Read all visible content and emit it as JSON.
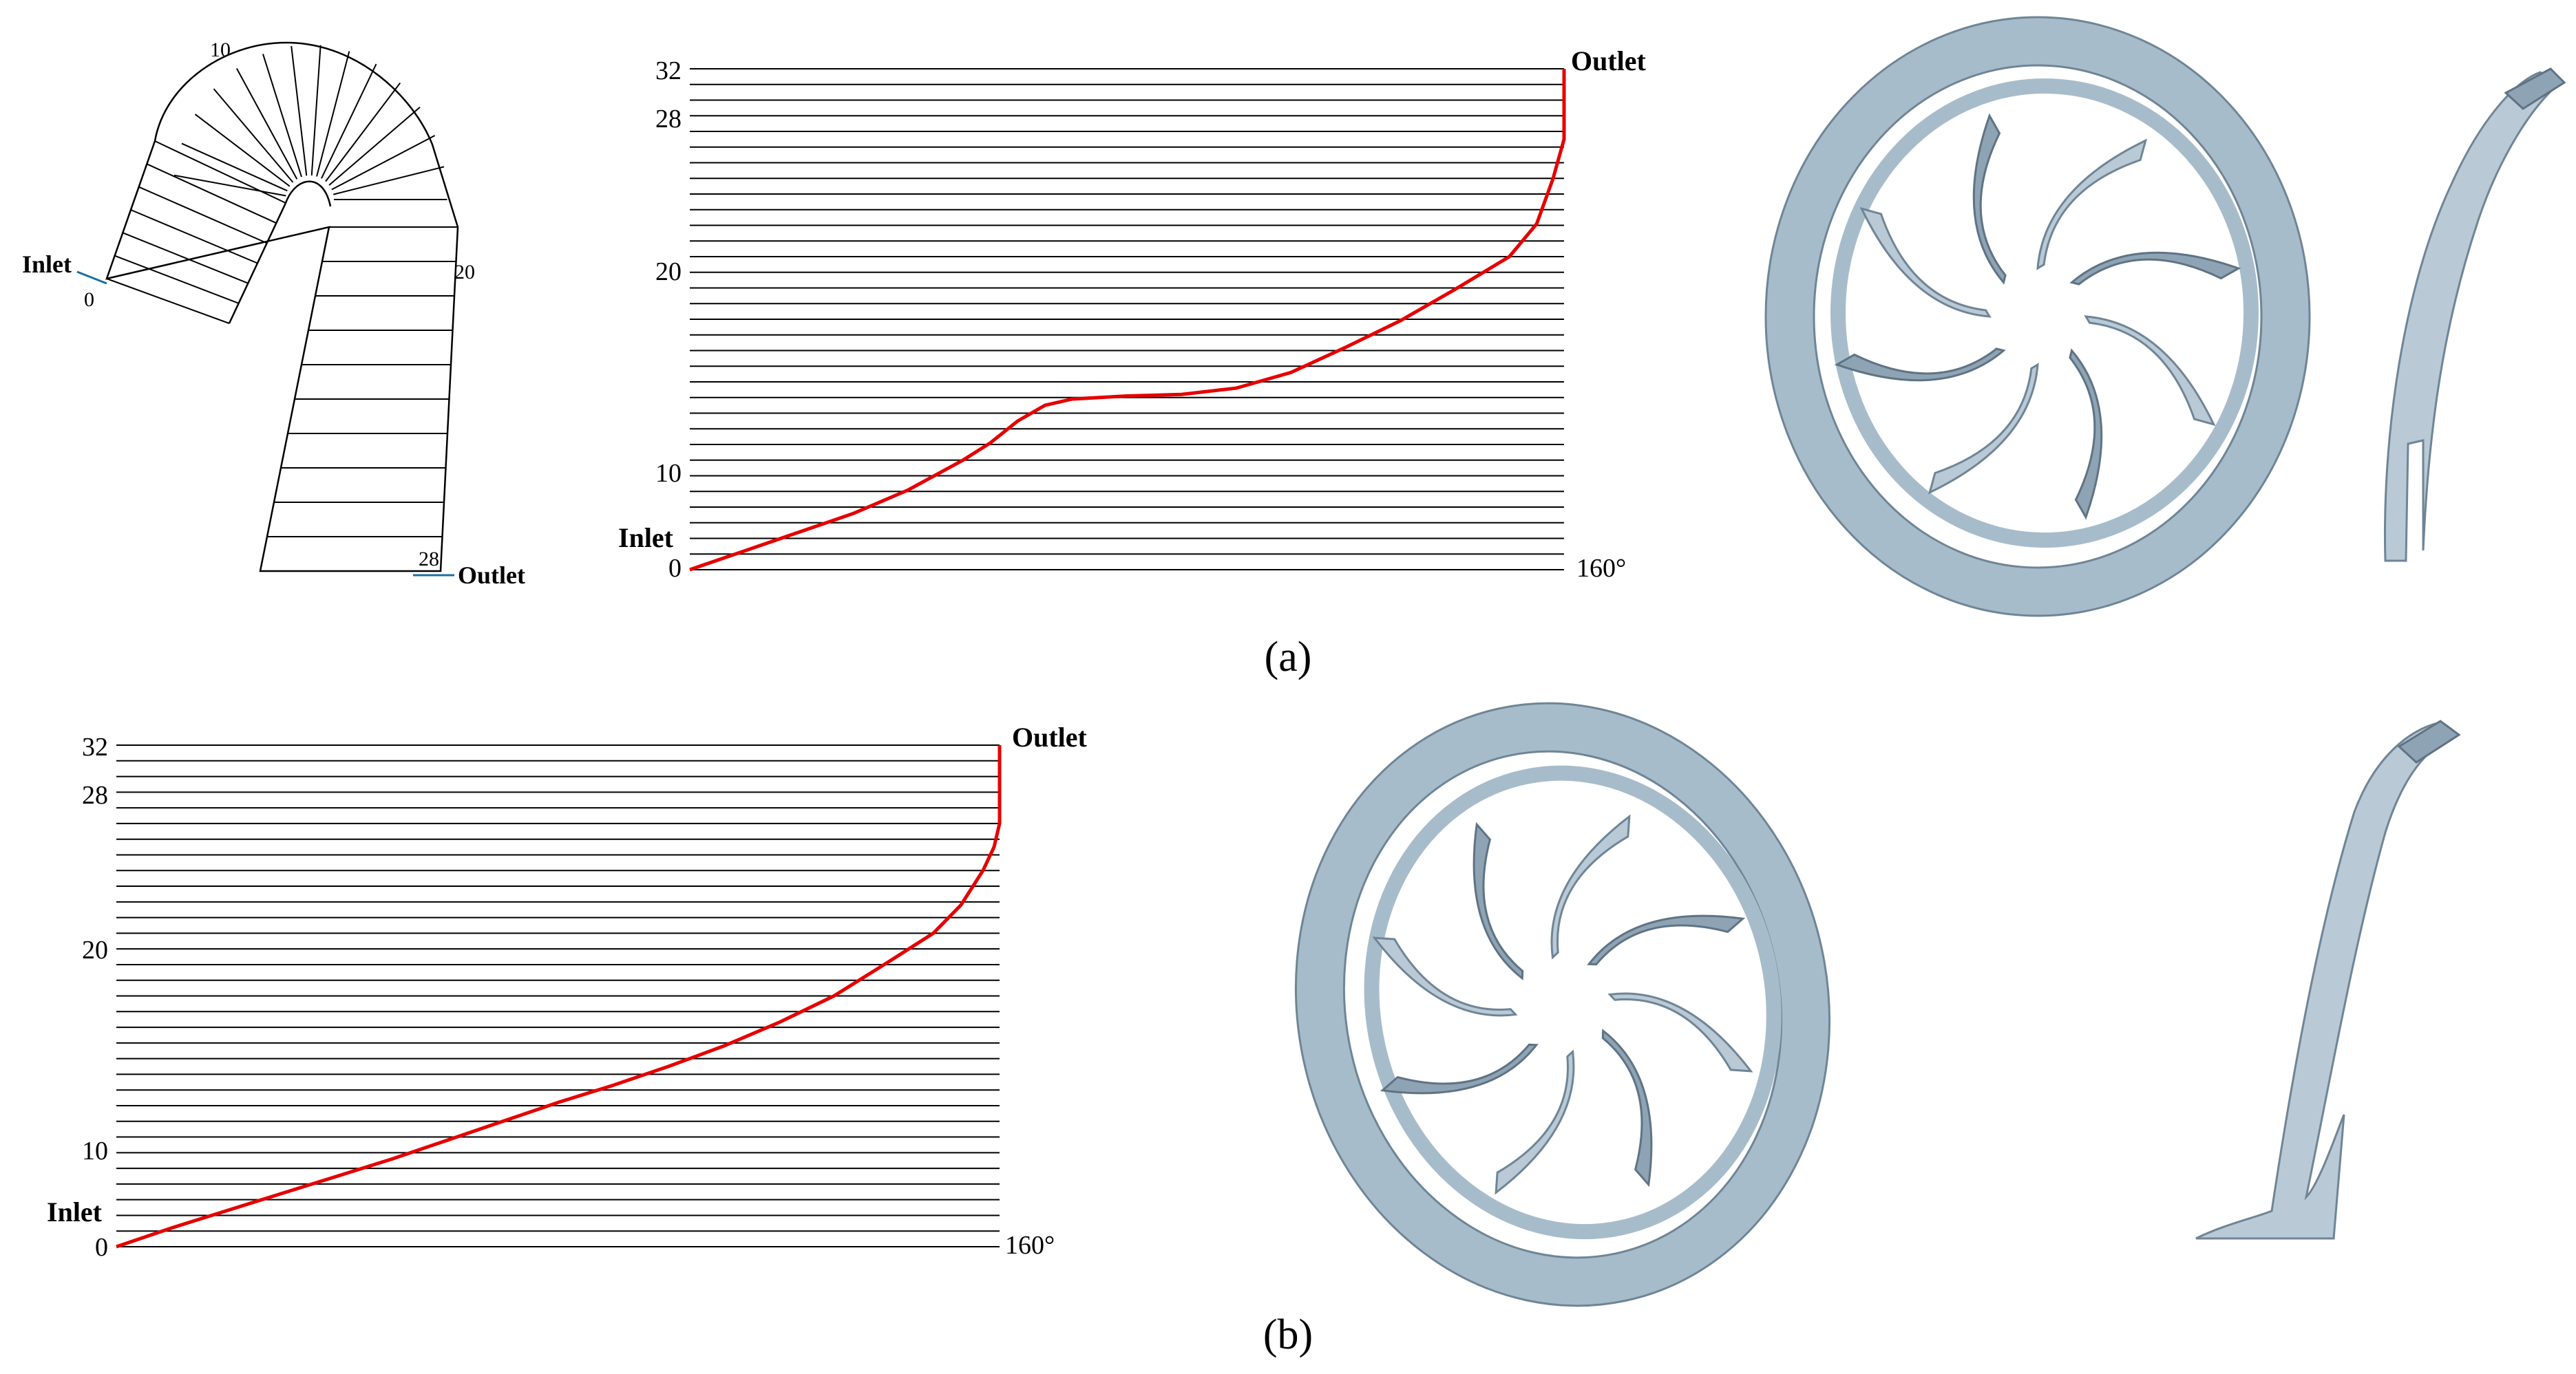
{
  "panel_a": {
    "caption": "(a)",
    "cascade": {
      "inlet_label": "Inlet",
      "outlet_label": "Outlet",
      "station_labels": [
        "0",
        "10",
        "20",
        "28"
      ]
    },
    "chart_title_outlet": "Outlet",
    "chart_title_inlet": "Inlet",
    "x_end_label": "160°",
    "y_tick_labels": [
      "0",
      "10",
      "20",
      "28",
      "32"
    ]
  },
  "panel_b": {
    "caption": "(b)",
    "chart_title_outlet": "Outlet",
    "chart_title_inlet": "Inlet",
    "x_end_label": "160°",
    "y_tick_labels": [
      "0",
      "10",
      "20",
      "28",
      "32"
    ]
  },
  "colors": {
    "curve": "#e60000",
    "grid": "#000000",
    "blade": "#b9c9d6"
  },
  "chart_data": [
    {
      "type": "line",
      "panel": "a",
      "x_unit": "degree",
      "xlim": [
        0,
        160
      ],
      "ylim": [
        0,
        32
      ],
      "grid_lines": 33,
      "series": [
        {
          "x": [
            0,
            10,
            20,
            30,
            40,
            50,
            55,
            60,
            65,
            70,
            80,
            90,
            100,
            110,
            120,
            130,
            140,
            150,
            155,
            158,
            160,
            160
          ],
          "y": [
            0,
            1.2,
            2.4,
            3.6,
            5.1,
            7.0,
            8.1,
            9.5,
            10.5,
            10.9,
            11.1,
            11.2,
            11.6,
            12.6,
            14.2,
            15.9,
            17.9,
            20.0,
            22.1,
            25.0,
            27.5,
            32
          ]
        }
      ]
    },
    {
      "type": "line",
      "panel": "b",
      "x_unit": "degree",
      "xlim": [
        0,
        160
      ],
      "ylim": [
        0,
        32
      ],
      "grid_lines": 33,
      "series": [
        {
          "x": [
            0,
            10,
            20,
            30,
            40,
            50,
            60,
            70,
            80,
            90,
            100,
            110,
            120,
            130,
            140,
            148,
            153,
            157,
            159,
            160,
            160
          ],
          "y": [
            0,
            1.2,
            2.3,
            3.4,
            4.5,
            5.6,
            6.8,
            8.0,
            9.2,
            10.3,
            11.5,
            12.8,
            14.3,
            16.0,
            18.2,
            20.0,
            21.8,
            24.0,
            25.5,
            27.0,
            32
          ]
        }
      ]
    }
  ]
}
